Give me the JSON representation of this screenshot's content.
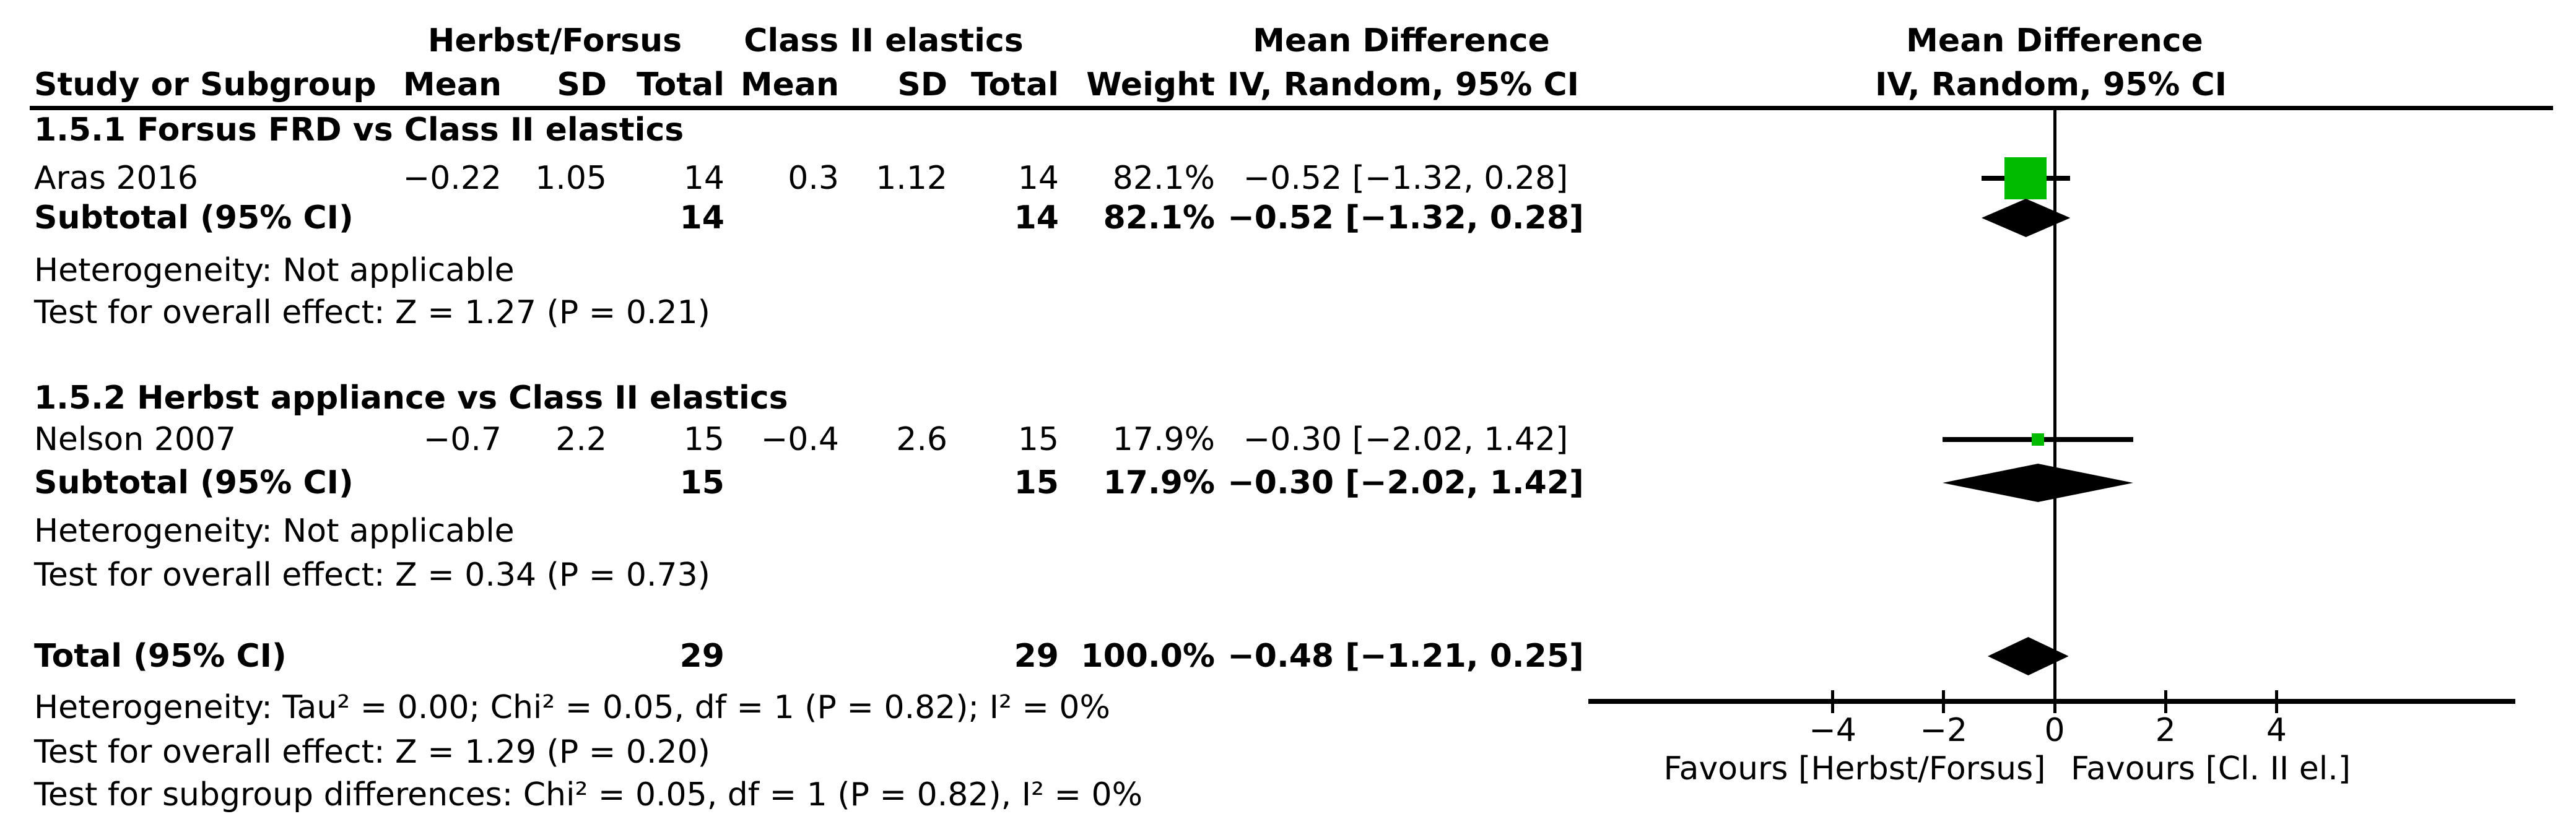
{
  "headers": {
    "group1": "Herbst/Forsus",
    "group2": "Class II elastics",
    "md_left": "Mean Difference",
    "md_right": "Mean Difference",
    "study": "Study or Subgroup",
    "mean1": "Mean",
    "sd1": "SD",
    "total1": "Total",
    "mean2": "Mean",
    "sd2": "SD",
    "total2": "Total",
    "weight": "Weight",
    "ci_left": "IV, Random, 95% CI",
    "ci_right": "IV, Random, 95% CI"
  },
  "section1": {
    "title": "1.5.1 Forsus FRD vs Class II elastics",
    "study": {
      "name": "Aras 2016",
      "mean1": "−0.22",
      "sd1": "1.05",
      "total1": "14",
      "mean2": "0.3",
      "sd2": "1.12",
      "total2": "14",
      "weight": "82.1%",
      "ci": "−0.52 [−1.32, 0.28]"
    },
    "subtotal": {
      "label": "Subtotal (95% CI)",
      "total1": "14",
      "total2": "14",
      "weight": "82.1%",
      "ci": "−0.52 [−1.32, 0.28]"
    },
    "heterogeneity": "Heterogeneity: Not applicable",
    "overall_effect": "Test for overall effect: Z = 1.27 (P = 0.21)"
  },
  "section2": {
    "title": "1.5.2 Herbst appliance vs Class II elastics",
    "study": {
      "name": "Nelson 2007",
      "mean1": "−0.7",
      "sd1": "2.2",
      "total1": "15",
      "mean2": "−0.4",
      "sd2": "2.6",
      "total2": "15",
      "weight": "17.9%",
      "ci": "−0.30 [−2.02, 1.42]"
    },
    "subtotal": {
      "label": "Subtotal (95% CI)",
      "total1": "15",
      "total2": "15",
      "weight": "17.9%",
      "ci": "−0.30 [−2.02, 1.42]"
    },
    "heterogeneity": "Heterogeneity: Not applicable",
    "overall_effect": "Test for overall effect: Z = 0.34 (P = 0.73)"
  },
  "total_row": {
    "label": "Total (95% CI)",
    "total1": "29",
    "total2": "29",
    "weight": "100.0%",
    "ci": "−0.48 [−1.21, 0.25]"
  },
  "footer": {
    "heterogeneity": "Heterogeneity: Tau² = 0.00; Chi² = 0.05, df = 1 (P = 0.82); I² = 0%",
    "overall_effect": "Test for overall effect: Z = 1.29 (P = 0.20)",
    "subgroup": "Test for subgroup differences: Chi² = 0.05, df = 1 (P = 0.82), I² = 0%"
  },
  "chart_data": {
    "type": "forest",
    "effect_measure": "Mean Difference, IV, Random, 95% CI",
    "x_axis": {
      "ticks": [
        -4,
        -2,
        0,
        2,
        4
      ],
      "zero_line": 0
    },
    "favours_left": "Favours [Herbst/Forsus]",
    "favours_right": "Favours [Cl. II el.]",
    "points": [
      {
        "id": "aras",
        "label": "Aras 2016",
        "estimate": -0.52,
        "ci_low": -1.32,
        "ci_high": 0.28,
        "weight_pct": 82.1,
        "marker": "square"
      },
      {
        "id": "sub1",
        "label": "Subtotal 1.5.1",
        "estimate": -0.52,
        "ci_low": -1.32,
        "ci_high": 0.28,
        "marker": "diamond"
      },
      {
        "id": "nelson",
        "label": "Nelson 2007",
        "estimate": -0.3,
        "ci_low": -2.02,
        "ci_high": 1.42,
        "weight_pct": 17.9,
        "marker": "square"
      },
      {
        "id": "sub2",
        "label": "Subtotal 1.5.2",
        "estimate": -0.3,
        "ci_low": -2.02,
        "ci_high": 1.42,
        "marker": "diamond"
      },
      {
        "id": "total",
        "label": "Total",
        "estimate": -0.48,
        "ci_low": -1.21,
        "ci_high": 0.25,
        "marker": "diamond"
      }
    ],
    "colors": {
      "study_marker": "#00bb00",
      "summary_diamond": "#000000"
    }
  }
}
